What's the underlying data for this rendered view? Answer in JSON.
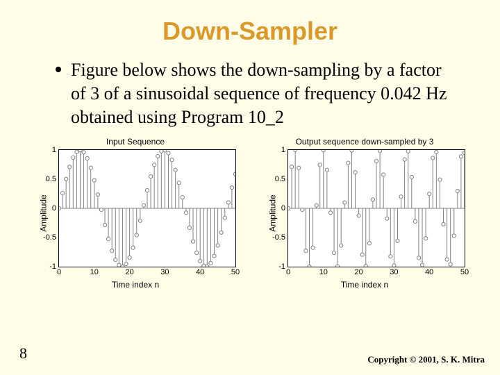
{
  "title": "Down-Sampler",
  "bullet": "Figure below shows the down-sampling by a factor of 3 of a sinusoidal sequence of frequency 0.042 Hz obtained using Program 10_2",
  "page_number": "8",
  "copyright": "Copyright © 2001, S. K. Mitra",
  "left_chart": {
    "title": "Input Sequence",
    "xlabel": "Time index n",
    "ylabel": "Amplitude",
    "xlim": [
      0,
      50
    ],
    "ylim": [
      -1,
      1
    ],
    "xticks": [
      0,
      10,
      20,
      30,
      40,
      50
    ],
    "yticks": [
      -1,
      -0.5,
      0,
      0.5,
      1
    ],
    "ytick_labels": [
      "-1",
      "-0.5",
      "0",
      "0.5",
      "1"
    ],
    "n_points": 51,
    "freq": 0.042,
    "stem_color": "#808080",
    "marker_stroke": "#808080",
    "marker_r": 2.6
  },
  "right_chart": {
    "title": "Output sequence down-sampled by 3",
    "xlabel": "Time index n",
    "ylabel": "Amplitude",
    "xlim": [
      0,
      50
    ],
    "ylim": [
      -1,
      1
    ],
    "xticks": [
      0,
      10,
      20,
      30,
      40,
      50
    ],
    "yticks": [
      -1,
      -0.5,
      0,
      0.5,
      1
    ],
    "ytick_labels": [
      "-1",
      "-0.5",
      "0",
      "0.5",
      "1"
    ],
    "n_points": 51,
    "freq": 0.126,
    "stem_color": "#808080",
    "marker_stroke": "#808080",
    "marker_r": 2.6
  }
}
